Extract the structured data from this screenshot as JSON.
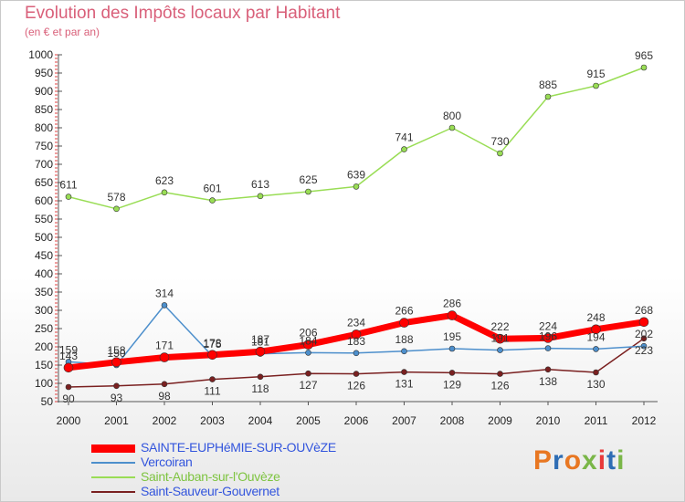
{
  "header": {
    "title": "Evolution des Impôts locaux par Habitant",
    "subtitle": "(en € et par an)"
  },
  "logo": {
    "text": "Proxiti",
    "colors": [
      "#e87722",
      "#2e6db4",
      "#e87722",
      "#7ab648",
      "#e83a3a",
      "#2e6db4",
      "#7ab648"
    ]
  },
  "chart_data": {
    "type": "line",
    "x": [
      "2000",
      "2001",
      "2002",
      "2003",
      "2004",
      "2005",
      "2006",
      "2007",
      "2008",
      "2009",
      "2010",
      "2011",
      "2012"
    ],
    "ylim": [
      50,
      1000
    ],
    "yticks": [
      50,
      100,
      150,
      200,
      250,
      300,
      350,
      400,
      450,
      500,
      550,
      600,
      650,
      700,
      750,
      800,
      850,
      900,
      950,
      1000
    ],
    "grid": false,
    "legend_position": "bottom-left",
    "series": [
      {
        "name": "SAINTE-EUPHéMIE-SUR-OUVèZE",
        "color": "#ff0000",
        "values": [
          143,
          158,
          171,
          178,
          187,
          206,
          234,
          266,
          286,
          222,
          224,
          248,
          268
        ],
        "labels": [
          "143",
          "158",
          "171",
          "178",
          "187",
          "206",
          "234",
          "266",
          "286",
          "222",
          "224",
          "248",
          "268"
        ]
      },
      {
        "name": "Vercoiran",
        "color": "#4d8fcc",
        "values": [
          159,
          150,
          314,
          175,
          181,
          184,
          183,
          188,
          195,
          191,
          196,
          194,
          202
        ],
        "labels": [
          "159",
          "150",
          "314",
          "175",
          "181",
          "184",
          "183",
          "188",
          "195",
          "191",
          "196",
          "194",
          "202"
        ]
      },
      {
        "name": "Saint-Auban-sur-l'Ouvèze",
        "color": "#99dd55",
        "values": [
          611,
          578,
          623,
          601,
          613,
          625,
          639,
          741,
          800,
          730,
          885,
          915,
          965
        ],
        "labels": [
          "611",
          "578",
          "623",
          "601",
          "613",
          "625",
          "639",
          "741",
          "800",
          "730",
          "885",
          "915",
          "965"
        ]
      },
      {
        "name": "Saint-Sauveur-Gouvernet",
        "color": "#7a2020",
        "values": [
          90,
          93,
          98,
          111,
          118,
          127,
          126,
          131,
          129,
          126,
          138,
          130,
          223
        ],
        "labels": [
          "90",
          "93",
          "98",
          "111",
          "118",
          "127",
          "126",
          "131",
          "129",
          "126",
          "138",
          "130",
          "223"
        ]
      }
    ]
  }
}
